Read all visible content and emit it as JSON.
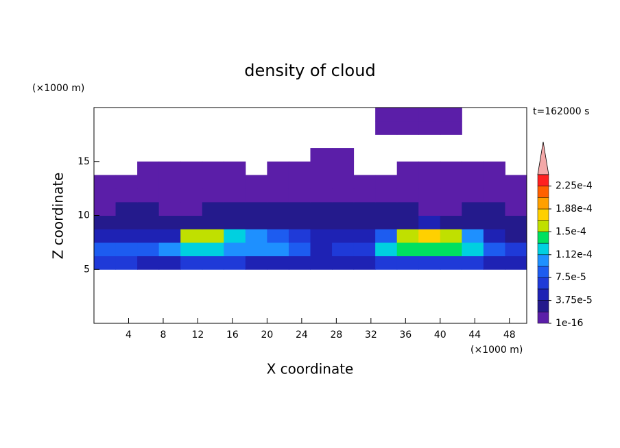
{
  "chart_data": {
    "type": "contour",
    "title": "density of cloud",
    "xlabel": "X coordinate",
    "ylabel": "Z coordinate",
    "x_unit": "(×1000 m)",
    "y_unit": "(×1000 m)",
    "annotation": "t=162000 s",
    "xlim": [
      0,
      50
    ],
    "ylim": [
      0,
      20
    ],
    "xticks": [
      4,
      8,
      12,
      16,
      20,
      24,
      28,
      32,
      36,
      40,
      44,
      48
    ],
    "yticks": [
      5,
      10,
      15
    ],
    "x": [
      1.25,
      3.75,
      6.25,
      8.75,
      11.25,
      13.75,
      16.25,
      18.75,
      21.25,
      23.75,
      26.25,
      28.75,
      31.25,
      33.75,
      36.25,
      38.75,
      41.25,
      43.75,
      46.25,
      48.75
    ],
    "y": [
      0.625,
      1.875,
      3.125,
      4.375,
      5.625,
      6.875,
      8.125,
      9.375,
      10.625,
      11.875,
      13.125,
      14.375,
      15.625,
      16.875,
      18.125,
      19.375
    ],
    "z": [
      [
        null,
        null,
        null,
        null,
        null,
        null,
        null,
        null,
        null,
        null,
        null,
        null,
        null,
        null,
        null,
        null,
        null,
        null,
        null,
        null
      ],
      [
        null,
        null,
        null,
        null,
        null,
        null,
        null,
        null,
        null,
        null,
        null,
        null,
        null,
        null,
        null,
        null,
        null,
        null,
        null,
        null
      ],
      [
        null,
        null,
        null,
        null,
        null,
        null,
        null,
        null,
        null,
        null,
        null,
        null,
        null,
        null,
        null,
        null,
        null,
        null,
        null,
        null
      ],
      [
        null,
        null,
        null,
        null,
        null,
        null,
        null,
        null,
        null,
        null,
        null,
        null,
        null,
        null,
        null,
        null,
        null,
        null,
        null,
        null
      ],
      [
        6e-05,
        6e-05,
        5e-05,
        5e-05,
        6e-05,
        6e-05,
        6e-05,
        5e-05,
        5e-05,
        5e-05,
        4e-05,
        4e-05,
        4e-05,
        6e-05,
        6e-05,
        6e-05,
        6e-05,
        6e-05,
        5e-05,
        4e-05
      ],
      [
        8e-05,
        9e-05,
        8e-05,
        0.00011,
        0.00013,
        0.00013,
        0.0001,
        0.00011,
        0.0001,
        8e-05,
        5e-05,
        7e-05,
        6e-05,
        0.00012,
        0.00014,
        0.00014,
        0.00014,
        0.00012,
        8e-05,
        7e-05
      ],
      [
        4e-05,
        4e-05,
        4e-05,
        4e-05,
        0.00015,
        0.00016,
        0.00013,
        0.0001,
        8e-05,
        7e-05,
        4e-05,
        5e-05,
        4e-05,
        9e-05,
        0.00016,
        0.00017,
        0.00015,
        0.00011,
        4e-05,
        3e-05
      ],
      [
        2e-05,
        2e-05,
        3e-05,
        3e-05,
        3e-05,
        3e-05,
        3e-05,
        3e-05,
        3e-05,
        3e-05,
        3e-05,
        3e-05,
        3e-05,
        3e-05,
        3e-05,
        4e-05,
        3e-05,
        3e-05,
        2e-05,
        2e-05
      ],
      [
        1e-16,
        2e-05,
        2e-05,
        1e-05,
        1e-16,
        2e-05,
        2e-05,
        2e-05,
        2e-05,
        2e-05,
        2e-05,
        2e-05,
        2e-05,
        2e-05,
        2e-05,
        1e-05,
        1e-16,
        2e-05,
        2e-05,
        1e-16
      ],
      [
        1e-16,
        1e-05,
        1e-05,
        1e-16,
        1e-05,
        1e-05,
        1e-05,
        1e-05,
        1e-05,
        1e-05,
        1e-05,
        1e-05,
        1e-05,
        1e-05,
        1e-05,
        1e-05,
        1e-05,
        1e-05,
        1e-05,
        1e-16
      ],
      [
        1e-16,
        1e-16,
        1e-05,
        1e-16,
        1e-16,
        1e-16,
        1e-05,
        1e-05,
        1e-16,
        1e-16,
        1e-16,
        1e-16,
        1e-16,
        1e-16,
        1e-16,
        1e-16,
        1e-16,
        1e-16,
        1e-16,
        1e-16
      ],
      [
        null,
        null,
        1e-16,
        1e-16,
        1e-16,
        1e-16,
        1e-16,
        null,
        1e-16,
        1e-16,
        1e-16,
        1e-16,
        null,
        null,
        1e-16,
        1e-16,
        1e-16,
        1e-16,
        1e-16,
        null
      ],
      [
        null,
        null,
        null,
        null,
        null,
        null,
        null,
        null,
        null,
        null,
        1e-16,
        1e-16,
        null,
        null,
        null,
        null,
        null,
        null,
        null,
        null
      ],
      [
        null,
        null,
        null,
        null,
        null,
        null,
        null,
        null,
        null,
        null,
        null,
        null,
        null,
        null,
        null,
        null,
        null,
        null,
        null,
        null
      ],
      [
        null,
        null,
        null,
        null,
        null,
        null,
        null,
        null,
        null,
        null,
        null,
        null,
        null,
        1e-16,
        1e-16,
        1e-16,
        1e-16,
        null,
        null,
        null
      ],
      [
        null,
        null,
        null,
        null,
        null,
        null,
        null,
        null,
        null,
        null,
        null,
        null,
        null,
        1e-16,
        1e-16,
        1e-16,
        1e-16,
        null,
        null,
        null
      ]
    ],
    "levels": [
      1e-16,
      1.875e-05,
      3.75e-05,
      5.625e-05,
      7.5e-05,
      9.375e-05,
      0.0001125,
      0.00013125,
      0.00015,
      0.00016875,
      0.0001875,
      0.00020625,
      0.000225,
      0.00024375
    ],
    "colors": [
      "#5b1ea8",
      "#241a8c",
      "#1e22b4",
      "#1f3ad8",
      "#1d5cf0",
      "#1e90ff",
      "#00d0e0",
      "#00e060",
      "#c0e000",
      "#ffd000",
      "#ffa000",
      "#ff6000",
      "#ff2020"
    ],
    "extend_color": "#f4a8a8",
    "colorbar_ticks": [
      1e-16,
      {
        "value": 3.75e-05,
        "label": "3.75e-5"
      },
      {
        "value": 7.5e-05,
        "label": "7.5e-5"
      },
      {
        "value": 0.0001125,
        "label": "1.12e-4"
      },
      {
        "value": 0.00015,
        "label": "1.5e-4"
      },
      {
        "value": 0.0001875,
        "label": "1.88e-4"
      },
      {
        "value": 0.000225,
        "label": "2.25e-4"
      }
    ]
  }
}
